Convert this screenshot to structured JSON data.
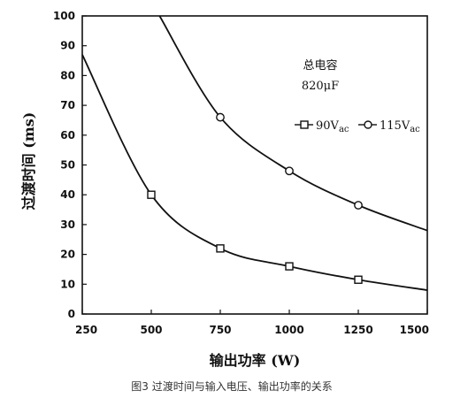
{
  "chart_data": {
    "type": "line",
    "title": "",
    "caption": "图3 过渡时间与输入电压、输出功率的关系",
    "xlabel": "输出功率 (W)",
    "ylabel": "过渡时间 (ms)",
    "xlim": [
      250,
      1500
    ],
    "ylim": [
      0,
      100
    ],
    "xticks": [
      "250",
      "500",
      "750",
      "1000",
      "1250",
      "1500"
    ],
    "yticks": [
      "0",
      "10",
      "20",
      "30",
      "40",
      "50",
      "60",
      "70",
      "80",
      "90",
      "100"
    ],
    "annotation": [
      "总电容",
      "820μF"
    ],
    "grid": false,
    "legend_position": "upper-right",
    "series": [
      {
        "name": "90Vac",
        "marker": "square",
        "points": [
          [
            250,
            87
          ],
          [
            500,
            40
          ],
          [
            750,
            22
          ],
          [
            1000,
            16
          ],
          [
            1250,
            11.5
          ],
          [
            1500,
            8
          ]
        ],
        "marker_points": [
          [
            500,
            40
          ],
          [
            750,
            22
          ],
          [
            1000,
            16
          ],
          [
            1250,
            11.5
          ]
        ]
      },
      {
        "name": "115Vac",
        "marker": "circle",
        "points": [
          [
            530,
            100
          ],
          [
            750,
            66
          ],
          [
            1000,
            48
          ],
          [
            1250,
            36.5
          ],
          [
            1500,
            28
          ]
        ],
        "marker_points": [
          [
            750,
            66
          ],
          [
            1000,
            48
          ],
          [
            1250,
            36.5
          ]
        ]
      }
    ],
    "legend_labels": [
      "90V",
      "ac",
      "115V",
      "ac"
    ]
  }
}
